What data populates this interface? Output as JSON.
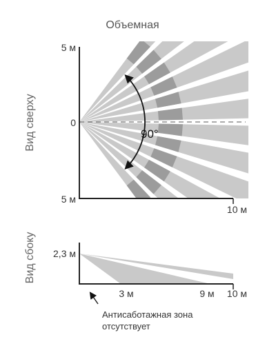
{
  "title": "Объемная",
  "top_view": {
    "label": "Вид сверху",
    "tick_top": "5 м",
    "tick_mid": "0",
    "tick_bottom": "5 м",
    "x_max_label": "10 м",
    "angle_label": "90°",
    "zone_count": 12,
    "colors": {
      "beam_light": "#c9c9c9",
      "beam_dark": "#9c9c9c",
      "axis": "#222222",
      "centerline": "#777777"
    }
  },
  "side_view": {
    "label": "Вид сбоку",
    "height_label": "2,3 м",
    "x_labels": [
      "3 м",
      "9 м",
      "10 м"
    ],
    "note_line1": "Антисаботажная зона",
    "note_line2": "отсутствует"
  }
}
